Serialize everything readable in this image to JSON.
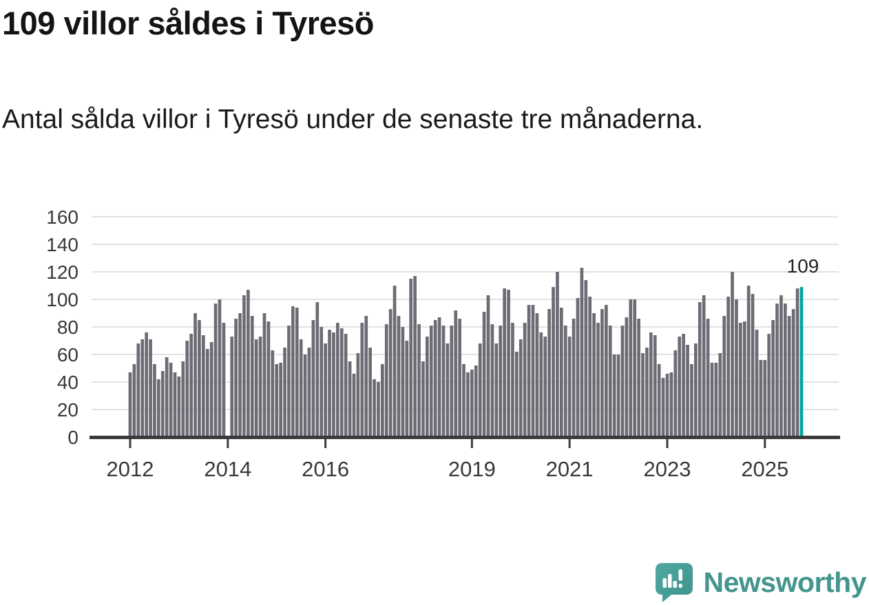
{
  "header": {
    "title": "109 villor såldes i Tyresö",
    "subtitle": "Antal sålda villor i Tyresö under de senaste tre månaderna."
  },
  "chart_data": {
    "type": "bar",
    "title": "109 villor såldes i Tyresö",
    "subtitle": "Antal sålda villor i Tyresö under de senaste tre månaderna.",
    "x_start_year": 2012,
    "x_unit": "month",
    "values": [
      47,
      53,
      68,
      71,
      76,
      71,
      53,
      42,
      48,
      58,
      54,
      47,
      44,
      55,
      70,
      75,
      90,
      85,
      74,
      64,
      69,
      97,
      100,
      83,
      0,
      73,
      86,
      90,
      103,
      107,
      88,
      71,
      73,
      90,
      84,
      63,
      53,
      54,
      65,
      81,
      95,
      94,
      71,
      60,
      65,
      85,
      98,
      80,
      68,
      78,
      76,
      83,
      79,
      75,
      55,
      46,
      61,
      83,
      88,
      65,
      42,
      40,
      53,
      82,
      93,
      110,
      88,
      80,
      70,
      115,
      117,
      82,
      55,
      73,
      81,
      85,
      87,
      81,
      68,
      81,
      92,
      86,
      53,
      47,
      49,
      52,
      68,
      91,
      103,
      82,
      68,
      81,
      108,
      107,
      83,
      62,
      71,
      83,
      96,
      96,
      90,
      76,
      73,
      93,
      109,
      120,
      94,
      81,
      73,
      86,
      101,
      123,
      114,
      102,
      90,
      83,
      93,
      96,
      81,
      60,
      60,
      81,
      87,
      100,
      100,
      86,
      61,
      65,
      76,
      74,
      53,
      43,
      46,
      47,
      63,
      73,
      75,
      67,
      53,
      68,
      98,
      103,
      86,
      54,
      54,
      61,
      88,
      102,
      120,
      100,
      83,
      84,
      110,
      104,
      78,
      56,
      56,
      75,
      85,
      97,
      103,
      97,
      88,
      93,
      108,
      109
    ],
    "ylim": [
      0,
      160
    ],
    "yticks": [
      0,
      20,
      40,
      60,
      80,
      100,
      120,
      140,
      160
    ],
    "xticks": [
      {
        "label": "2012",
        "month_index": 0
      },
      {
        "label": "2014",
        "month_index": 24
      },
      {
        "label": "2016",
        "month_index": 48
      },
      {
        "label": "2019",
        "month_index": 84
      },
      {
        "label": "2021",
        "month_index": 108
      },
      {
        "label": "2023",
        "month_index": 132
      },
      {
        "label": "2025",
        "month_index": 156
      }
    ],
    "highlight": {
      "index": 165,
      "value": 109,
      "label": "109",
      "color": "#00A49D"
    },
    "bar_color": "#6C6C75",
    "grid": true,
    "gridline_color": "#E2E2E2",
    "axis_color": "#3B3B3B",
    "tick_label_color": "#383838",
    "legend": "none"
  },
  "branding": {
    "logo_text": "Newsworthy",
    "logo_text_color": "#43958E",
    "logo_bubble_color": "#4AA29B"
  }
}
